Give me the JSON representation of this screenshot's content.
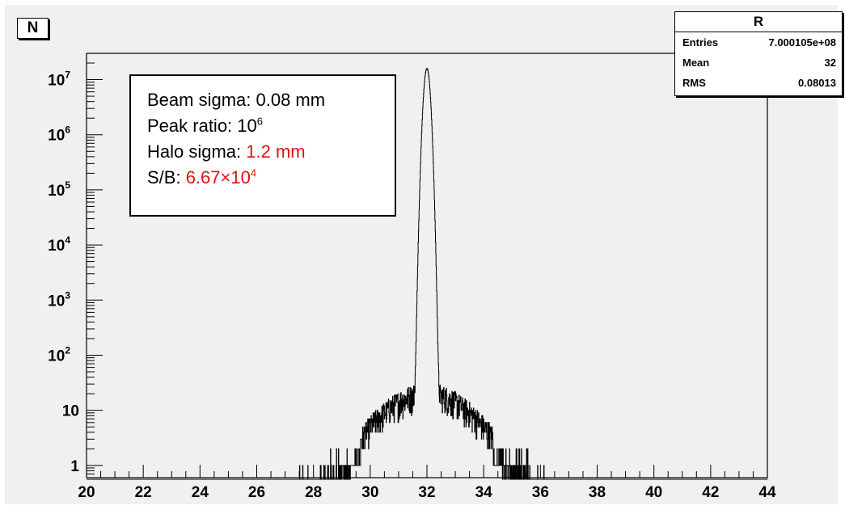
{
  "title_box": "N",
  "stats": {
    "title": "R",
    "rows": [
      {
        "label": "Entries",
        "value": "7.000105e+08"
      },
      {
        "label": "Mean",
        "value": "32"
      },
      {
        "label": "RMS",
        "value": "0.08013"
      }
    ]
  },
  "info": {
    "beam_label": "Beam sigma: ",
    "beam_value": "0.08 mm",
    "peak_label": "Peak ratio: ",
    "peak_base": "10",
    "peak_exp": "6",
    "halo_label": "Halo sigma: ",
    "halo_value": "1.2 mm",
    "sb_label": "S/B: ",
    "sb_base": "6.67×10",
    "sb_exp": "4",
    "highlight_color": "#e01010"
  },
  "chart_data": {
    "type": "histogram",
    "log_y": true,
    "xlim": [
      20,
      44
    ],
    "ylim": [
      0.6,
      30000000
    ],
    "x_ticks": [
      "20",
      "22",
      "24",
      "26",
      "28",
      "30",
      "32",
      "34",
      "36",
      "38",
      "40",
      "42",
      "44"
    ],
    "y_ticks": [
      {
        "base": "1",
        "exp": ""
      },
      {
        "base": "10",
        "exp": ""
      },
      {
        "base": "10",
        "exp": "2"
      },
      {
        "base": "10",
        "exp": "3"
      },
      {
        "base": "10",
        "exp": "4"
      },
      {
        "base": "10",
        "exp": "5"
      },
      {
        "base": "10",
        "exp": "6"
      },
      {
        "base": "10",
        "exp": "7"
      }
    ],
    "peak": {
      "mean": 32,
      "sigma": 0.08,
      "amplitude": 16000000
    },
    "halo": {
      "mean": 32,
      "sigma": 1.2,
      "amplitude": 20,
      "range": [
        27.2,
        36.2
      ]
    },
    "line_color": "#000000"
  }
}
